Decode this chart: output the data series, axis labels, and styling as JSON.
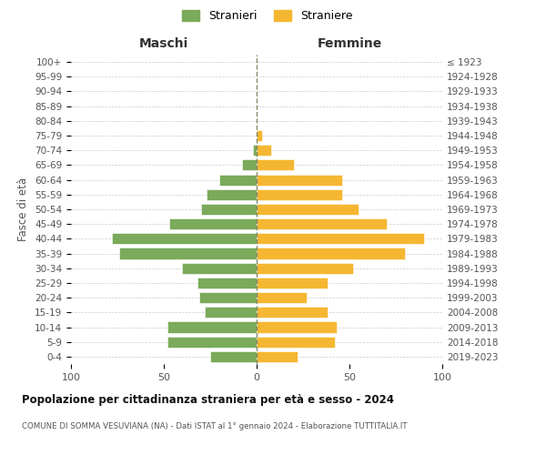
{
  "age_groups": [
    "0-4",
    "5-9",
    "10-14",
    "15-19",
    "20-24",
    "25-29",
    "30-34",
    "35-39",
    "40-44",
    "45-49",
    "50-54",
    "55-59",
    "60-64",
    "65-69",
    "70-74",
    "75-79",
    "80-84",
    "85-89",
    "90-94",
    "95-99",
    "100+"
  ],
  "birth_years": [
    "2019-2023",
    "2014-2018",
    "2009-2013",
    "2004-2008",
    "1999-2003",
    "1994-1998",
    "1989-1993",
    "1984-1988",
    "1979-1983",
    "1974-1978",
    "1969-1973",
    "1964-1968",
    "1959-1963",
    "1954-1958",
    "1949-1953",
    "1944-1948",
    "1939-1943",
    "1934-1938",
    "1929-1933",
    "1924-1928",
    "≤ 1923"
  ],
  "maschi": [
    25,
    48,
    48,
    28,
    31,
    32,
    40,
    74,
    78,
    47,
    30,
    27,
    20,
    8,
    2,
    0,
    0,
    0,
    0,
    0,
    0
  ],
  "femmine": [
    22,
    42,
    43,
    38,
    27,
    38,
    52,
    80,
    90,
    70,
    55,
    46,
    46,
    20,
    8,
    3,
    0,
    0,
    0,
    0,
    0
  ],
  "color_maschi": "#7aaa5a",
  "color_femmine": "#f5b731",
  "title": "Popolazione per cittadinanza straniera per età e sesso - 2024",
  "subtitle": "COMUNE DI SOMMA VESUVIANA (NA) - Dati ISTAT al 1° gennaio 2024 - Elaborazione TUTTITALIA.IT",
  "xlabel_left": "Maschi",
  "xlabel_right": "Femmine",
  "ylabel_left": "Fasce di età",
  "legend_maschi": "Stranieri",
  "legend_femmine": "Straniere",
  "xlim": 100,
  "bg_color": "#ffffff",
  "grid_color": "#cccccc"
}
